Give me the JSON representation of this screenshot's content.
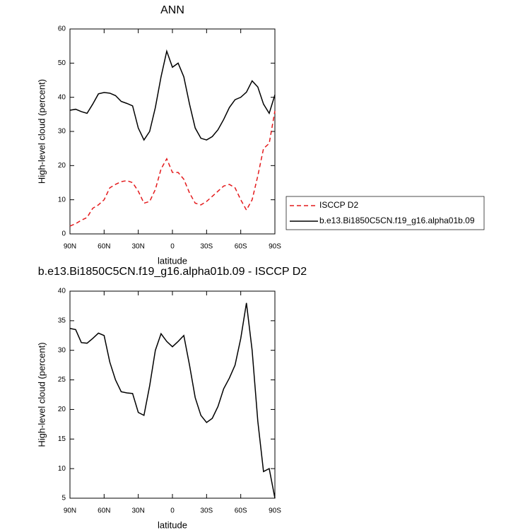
{
  "chart_data": [
    {
      "type": "line",
      "title": "ANN",
      "x_label": "latitude",
      "y_label": "High-level cloud (percent)",
      "x": [
        90,
        85,
        80,
        75,
        70,
        65,
        60,
        55,
        50,
        45,
        40,
        35,
        30,
        25,
        20,
        15,
        10,
        5,
        0,
        -5,
        -10,
        -15,
        -20,
        -25,
        -30,
        -35,
        -40,
        -45,
        -50,
        -55,
        -60,
        -65,
        -70,
        -75,
        -80,
        -85,
        -90
      ],
      "series": [
        {
          "name": "ISCCP D2",
          "color": "#e41a1c",
          "dashed": true,
          "values": [
            2.3,
            3,
            4,
            4.8,
            7.5,
            8.5,
            10,
            13.5,
            14.5,
            15.3,
            15.6,
            15,
            12.5,
            9,
            9.5,
            13,
            19,
            22,
            18,
            18,
            16,
            12,
            9,
            8.5,
            9.5,
            11,
            12.5,
            14,
            14.5,
            13.5,
            10,
            7,
            10,
            17,
            25,
            26.5,
            36
          ]
        },
        {
          "name": "b.e13.Bi1850C5CN.f19_g16.alpha01b.09",
          "color": "#000000",
          "dashed": false,
          "values": [
            36.2,
            36.5,
            35.8,
            35.3,
            38,
            41,
            41.4,
            41.2,
            40.5,
            38.8,
            38.2,
            37.5,
            31,
            27.5,
            30,
            37,
            46,
            53.5,
            48.8,
            50,
            46,
            38,
            31,
            28,
            27.5,
            28.5,
            30.5,
            33.5,
            37,
            39.3,
            40,
            41.5,
            44.8,
            43,
            38,
            35.3,
            40.7
          ]
        }
      ],
      "xlim": [
        90,
        -90
      ],
      "xticks": [
        {
          "value": 90,
          "label": "90N"
        },
        {
          "value": 60,
          "label": "60N"
        },
        {
          "value": 30,
          "label": "30N"
        },
        0,
        {
          "value": -30,
          "label": "30S"
        },
        {
          "value": -60,
          "label": "60S"
        },
        {
          "value": -90,
          "label": "90S"
        }
      ],
      "ylim": [
        0,
        60
      ],
      "yticks": [
        0,
        10,
        20,
        30,
        40,
        50,
        60
      ],
      "legend": "right"
    },
    {
      "type": "line",
      "title": "b.e13.Bi1850C5CN.f19_g16.alpha01b.09 - ISCCP D2",
      "x_label": "latitude",
      "y_label": "High-level cloud (percent)",
      "x": [
        90,
        85,
        80,
        75,
        70,
        65,
        60,
        55,
        50,
        45,
        40,
        35,
        30,
        25,
        20,
        15,
        10,
        5,
        0,
        -5,
        -10,
        -15,
        -20,
        -25,
        -30,
        -35,
        -40,
        -45,
        -50,
        -55,
        -60,
        -65,
        -70,
        -75,
        -80,
        -85,
        -90
      ],
      "series": [
        {
          "color": "#000000",
          "dashed": false,
          "values": [
            33.7,
            33.5,
            31.3,
            31.2,
            32,
            32.9,
            32.5,
            28,
            25,
            23,
            22.8,
            22.7,
            19.5,
            19,
            24,
            30,
            32.8,
            31.5,
            30.6,
            31.5,
            32.5,
            27.5,
            22,
            19,
            17.8,
            18.5,
            20.5,
            23.5,
            25.3,
            27.5,
            32,
            38,
            30,
            18,
            9.5,
            10,
            5
          ]
        }
      ],
      "xlim": [
        90,
        -90
      ],
      "xticks": [
        {
          "value": 90,
          "label": "90N"
        },
        {
          "value": 60,
          "label": "60N"
        },
        {
          "value": 30,
          "label": "30N"
        },
        0,
        {
          "value": -30,
          "label": "30S"
        },
        {
          "value": -60,
          "label": "60S"
        },
        {
          "value": -90,
          "label": "90S"
        }
      ],
      "ylim": [
        5,
        40
      ],
      "yticks": [
        5,
        10,
        15,
        20,
        25,
        30,
        35,
        40
      ]
    }
  ]
}
